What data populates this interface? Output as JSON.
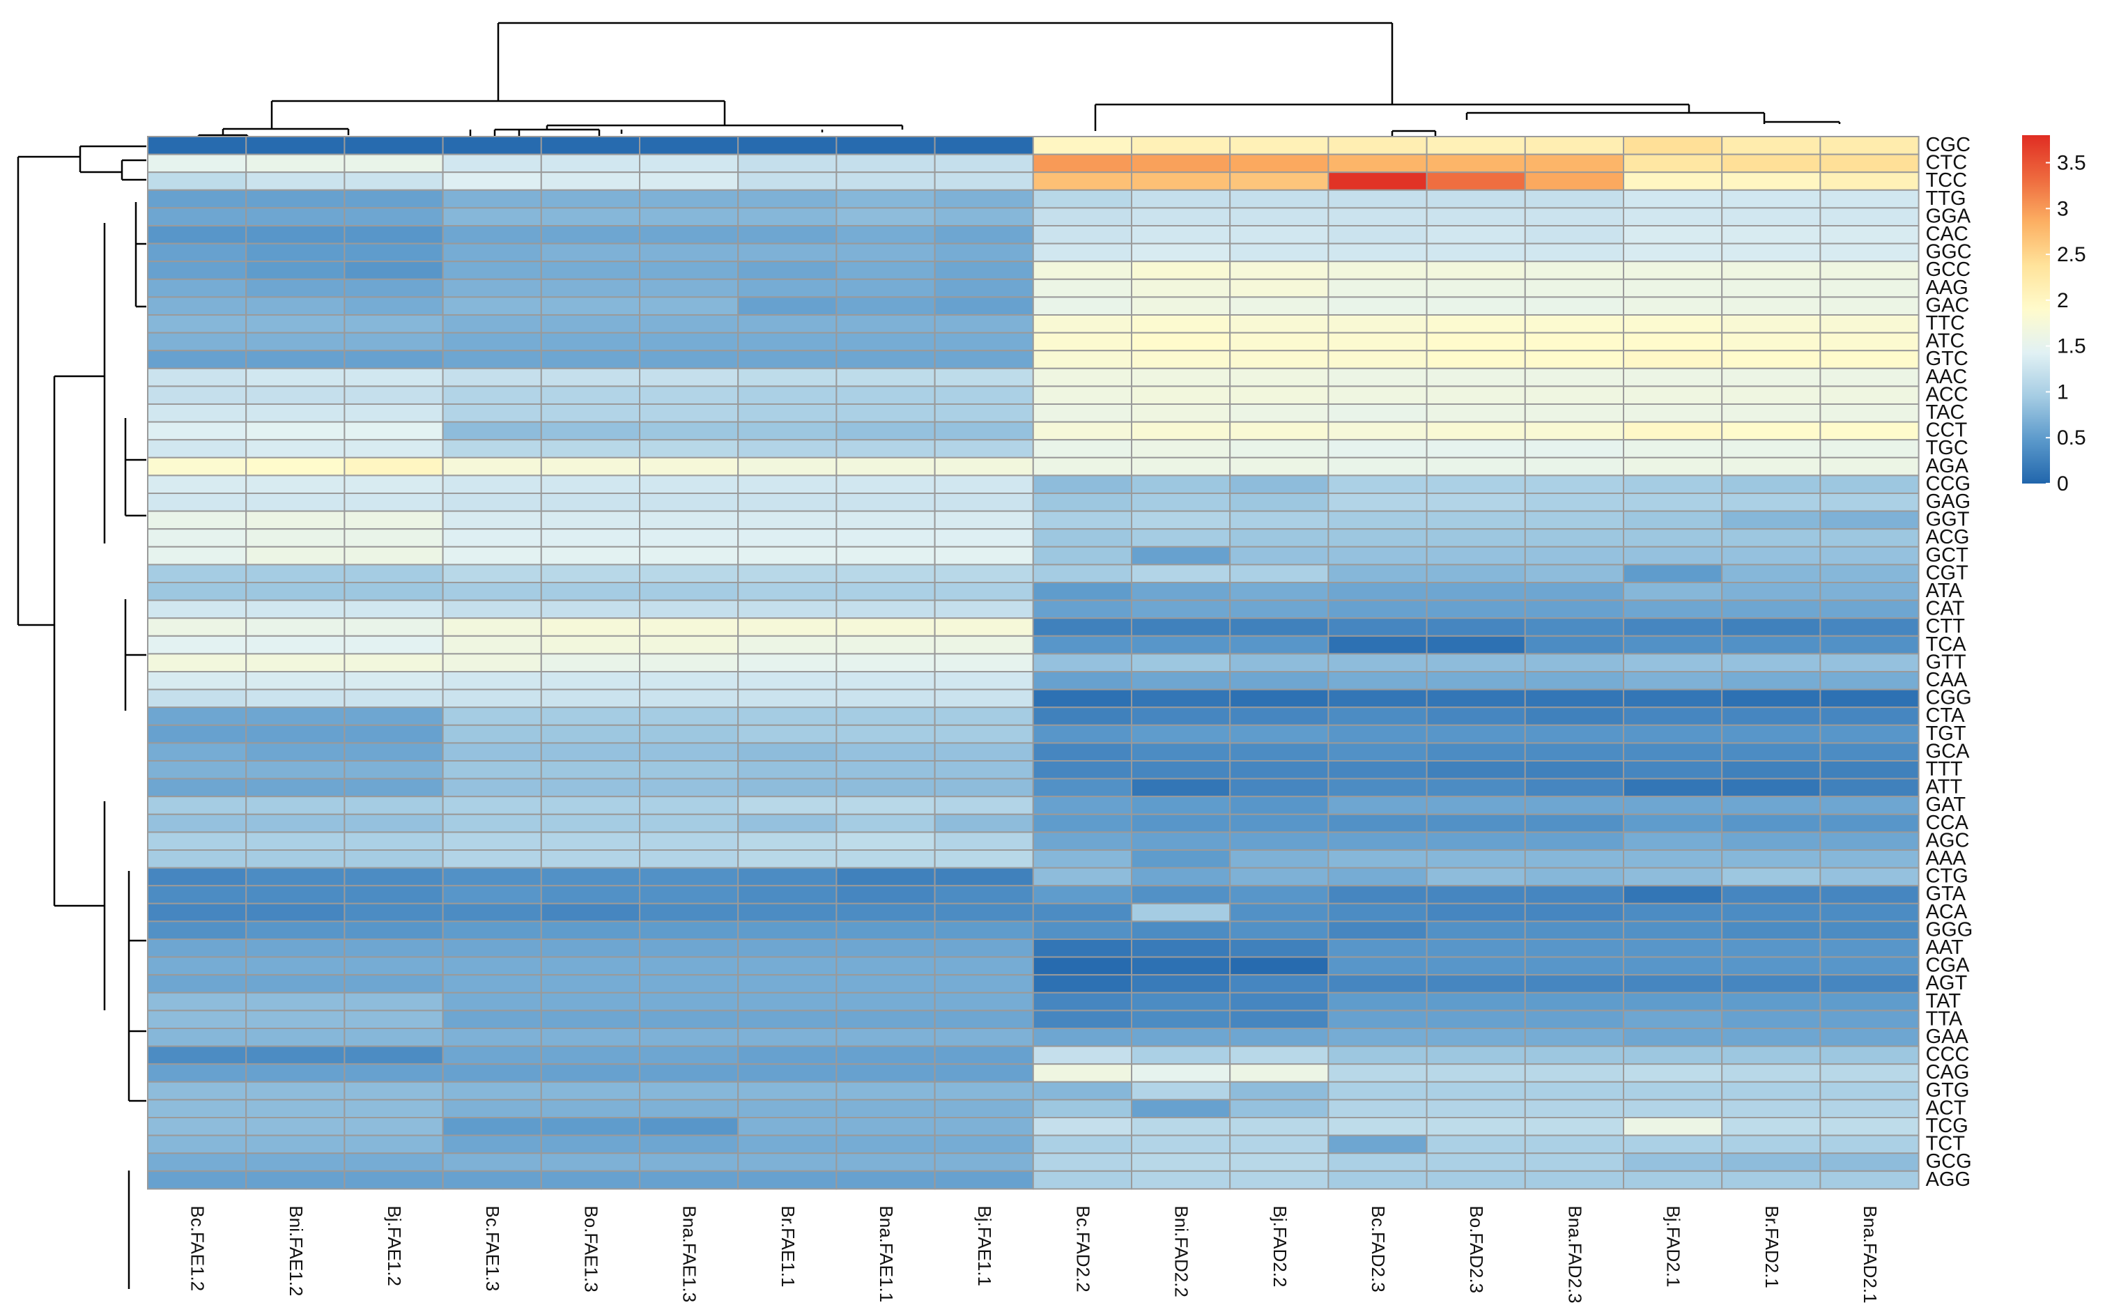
{
  "chart_data": {
    "type": "heatmap",
    "title": "",
    "colorscale": [
      "#2166AC",
      "#5B99CB",
      "#A5CCE3",
      "#E1F1F4",
      "#FFFBCC",
      "#FFE39B",
      "#FCB063",
      "#EE6A3E",
      "#E02D23"
    ],
    "vrange": [
      0,
      3.8
    ],
    "colorbar_ticks": [
      "0",
      "0.5",
      "1",
      "1.5",
      "2",
      "2.5",
      "3",
      "3.5"
    ],
    "columns": [
      "Bc.FAE1.2",
      "Bni.FAE1.2",
      "Bj.FAE1.2",
      "Bc.FAE1.3",
      "Bo.FAE1.3",
      "Bna.FAE1.3",
      "Br.FAE1.1",
      "Bna.FAE1.1",
      "Bj.FAE1.1",
      "Bc.FAD2.2",
      "Bni.FAD2.2",
      "Bj.FAD2.2",
      "Bc.FAD2.3",
      "Bo.FAD2.3",
      "Bna.FAD2.3",
      "Bj.FAD2.1",
      "Br.FAD2.1",
      "Bna.FAD2.1"
    ],
    "rows": [
      "CGC",
      "CTC",
      "TCC",
      "TTG",
      "GGA",
      "CAC",
      "GGC",
      "GCC",
      "AAG",
      "GAC",
      "TTC",
      "ATC",
      "GTC",
      "AAC",
      "ACC",
      "TAC",
      "CCT",
      "TGC",
      "AGA",
      "CCG",
      "GAG",
      "GGT",
      "ACG",
      "GCT",
      "CGT",
      "ATA",
      "CAT",
      "CTT",
      "TCA",
      "GTT",
      "CAA",
      "CGG",
      "CTA",
      "TGT",
      "GCA",
      "TTT",
      "ATT",
      "GAT",
      "CCA",
      "AGC",
      "AAA",
      "CTG",
      "GTA",
      "ACA",
      "GGG",
      "AAT",
      "CGA",
      "AGT",
      "TAT",
      "TTA",
      "GAA",
      "CCC",
      "CAG",
      "GTG",
      "ACT",
      "TCG",
      "TCT",
      "GCG",
      "AGG"
    ],
    "values": [
      [
        0.05,
        0.05,
        0.05,
        0.05,
        0.05,
        0.05,
        0.05,
        0.05,
        0.05,
        2.0,
        2.1,
        2.1,
        2.15,
        2.1,
        2.15,
        2.4,
        2.2,
        2.2
      ],
      [
        1.5,
        1.55,
        1.55,
        1.3,
        1.3,
        1.3,
        1.2,
        1.2,
        1.2,
        3.0,
        2.95,
        2.9,
        2.8,
        2.8,
        2.8,
        2.3,
        2.4,
        2.4
      ],
      [
        1.15,
        1.25,
        1.25,
        1.4,
        1.35,
        1.35,
        1.2,
        1.2,
        1.2,
        2.7,
        2.7,
        2.65,
        3.75,
        3.3,
        2.9,
        2.0,
        2.0,
        2.1
      ],
      [
        0.55,
        0.55,
        0.55,
        0.7,
        0.7,
        0.7,
        0.7,
        0.75,
        0.7,
        1.1,
        1.2,
        1.2,
        1.2,
        1.2,
        1.2,
        1.3,
        1.3,
        1.3
      ],
      [
        0.6,
        0.6,
        0.6,
        0.75,
        0.75,
        0.75,
        0.75,
        0.8,
        0.75,
        1.2,
        1.25,
        1.25,
        1.25,
        1.25,
        1.25,
        1.3,
        1.3,
        1.3
      ],
      [
        0.45,
        0.45,
        0.45,
        0.6,
        0.6,
        0.6,
        0.6,
        0.65,
        0.6,
        1.25,
        1.3,
        1.3,
        1.25,
        1.3,
        1.25,
        1.35,
        1.35,
        1.35
      ],
      [
        0.55,
        0.5,
        0.5,
        0.65,
        0.7,
        0.7,
        0.7,
        0.7,
        0.65,
        1.3,
        1.35,
        1.3,
        1.3,
        1.3,
        1.3,
        1.35,
        1.35,
        1.35
      ],
      [
        0.55,
        0.5,
        0.45,
        0.65,
        0.65,
        0.65,
        0.6,
        0.65,
        0.6,
        1.7,
        1.8,
        1.75,
        1.7,
        1.7,
        1.65,
        1.65,
        1.65,
        1.65
      ],
      [
        0.65,
        0.6,
        0.6,
        0.7,
        0.7,
        0.7,
        0.65,
        0.65,
        0.6,
        1.6,
        1.7,
        1.75,
        1.6,
        1.6,
        1.6,
        1.6,
        1.6,
        1.6
      ],
      [
        0.7,
        0.7,
        0.65,
        0.75,
        0.75,
        0.75,
        0.55,
        0.6,
        0.55,
        1.55,
        1.65,
        1.6,
        1.55,
        1.55,
        1.55,
        1.6,
        1.6,
        1.6
      ],
      [
        0.75,
        0.75,
        0.75,
        0.7,
        0.7,
        0.7,
        0.7,
        0.7,
        0.7,
        1.8,
        1.85,
        1.8,
        1.8,
        1.85,
        1.85,
        1.85,
        1.8,
        1.8
      ],
      [
        0.7,
        0.7,
        0.7,
        0.65,
        0.65,
        0.65,
        0.65,
        0.65,
        0.65,
        1.85,
        1.9,
        1.85,
        1.85,
        1.9,
        1.9,
        1.9,
        1.85,
        1.85
      ],
      [
        0.55,
        0.55,
        0.55,
        0.6,
        0.6,
        0.6,
        0.6,
        0.6,
        0.6,
        1.8,
        1.85,
        1.85,
        1.85,
        1.9,
        1.9,
        1.95,
        1.9,
        1.9
      ],
      [
        1.25,
        1.3,
        1.3,
        1.2,
        1.2,
        1.2,
        1.15,
        1.15,
        1.15,
        1.65,
        1.65,
        1.65,
        1.6,
        1.6,
        1.6,
        1.6,
        1.6,
        1.6
      ],
      [
        1.2,
        1.2,
        1.2,
        1.05,
        1.05,
        1.05,
        1.0,
        1.0,
        1.0,
        1.65,
        1.7,
        1.7,
        1.65,
        1.65,
        1.65,
        1.65,
        1.65,
        1.65
      ],
      [
        1.3,
        1.3,
        1.3,
        1.05,
        1.05,
        1.05,
        1.0,
        1.0,
        1.0,
        1.6,
        1.65,
        1.6,
        1.55,
        1.6,
        1.6,
        1.6,
        1.6,
        1.6
      ],
      [
        1.4,
        1.45,
        1.45,
        0.8,
        0.85,
        0.9,
        0.9,
        0.85,
        0.85,
        1.75,
        1.8,
        1.8,
        1.75,
        1.8,
        1.8,
        1.95,
        1.9,
        1.9
      ],
      [
        1.3,
        1.35,
        1.35,
        1.1,
        1.1,
        1.1,
        1.05,
        1.05,
        1.05,
        1.55,
        1.6,
        1.55,
        1.5,
        1.5,
        1.5,
        1.55,
        1.55,
        1.55
      ],
      [
        1.85,
        1.9,
        2.0,
        1.75,
        1.75,
        1.75,
        1.7,
        1.7,
        1.7,
        1.6,
        1.6,
        1.6,
        1.55,
        1.55,
        1.55,
        1.6,
        1.6,
        1.6
      ],
      [
        1.35,
        1.35,
        1.35,
        1.3,
        1.3,
        1.3,
        1.3,
        1.3,
        1.3,
        0.8,
        0.9,
        0.8,
        1.0,
        1.0,
        1.0,
        0.95,
        0.9,
        0.9
      ],
      [
        1.3,
        1.3,
        1.3,
        1.25,
        1.25,
        1.25,
        1.25,
        1.25,
        1.25,
        0.9,
        0.95,
        0.9,
        1.05,
        1.05,
        1.0,
        1.0,
        1.0,
        1.0
      ],
      [
        1.55,
        1.6,
        1.6,
        1.35,
        1.35,
        1.35,
        1.35,
        1.35,
        1.35,
        1.0,
        1.05,
        1.0,
        0.95,
        0.95,
        0.95,
        0.9,
        0.75,
        0.7
      ],
      [
        1.5,
        1.55,
        1.55,
        1.4,
        1.4,
        1.4,
        1.4,
        1.4,
        1.4,
        0.9,
        0.95,
        0.9,
        0.9,
        0.9,
        0.9,
        0.9,
        0.9,
        0.9
      ],
      [
        1.5,
        1.6,
        1.6,
        1.45,
        1.45,
        1.45,
        1.45,
        1.45,
        1.45,
        0.9,
        0.55,
        0.85,
        0.85,
        0.85,
        0.85,
        0.85,
        0.85,
        0.85
      ],
      [
        0.95,
        0.95,
        0.95,
        1.1,
        1.1,
        1.1,
        1.1,
        1.1,
        1.1,
        0.95,
        1.05,
        1.0,
        0.75,
        0.75,
        0.8,
        0.5,
        0.75,
        0.75
      ],
      [
        0.9,
        0.9,
        0.9,
        0.95,
        0.95,
        0.95,
        1.0,
        1.0,
        1.0,
        0.5,
        0.6,
        0.65,
        0.6,
        0.6,
        0.6,
        0.75,
        0.7,
        0.7
      ],
      [
        1.3,
        1.3,
        1.3,
        1.2,
        1.2,
        1.2,
        1.2,
        1.2,
        1.2,
        0.55,
        0.6,
        0.6,
        0.55,
        0.55,
        0.55,
        0.6,
        0.6,
        0.6
      ],
      [
        1.6,
        1.55,
        1.55,
        1.7,
        1.75,
        1.75,
        1.75,
        1.75,
        1.75,
        0.25,
        0.25,
        0.25,
        0.3,
        0.3,
        0.35,
        0.3,
        0.25,
        0.3
      ],
      [
        1.45,
        1.45,
        1.45,
        1.65,
        1.7,
        1.7,
        1.6,
        1.6,
        1.6,
        0.45,
        0.45,
        0.45,
        0.1,
        0.1,
        0.35,
        0.4,
        0.4,
        0.4
      ],
      [
        1.7,
        1.7,
        1.7,
        1.65,
        1.55,
        1.55,
        1.5,
        1.5,
        1.5,
        0.85,
        0.9,
        0.8,
        0.8,
        0.8,
        0.8,
        0.85,
        0.85,
        0.85
      ],
      [
        1.35,
        1.35,
        1.35,
        1.3,
        1.3,
        1.3,
        1.3,
        1.3,
        1.3,
        0.55,
        0.6,
        0.6,
        0.65,
        0.65,
        0.65,
        0.7,
        0.65,
        0.65
      ],
      [
        1.2,
        1.25,
        1.25,
        1.25,
        1.25,
        1.25,
        1.25,
        1.25,
        1.25,
        0.1,
        0.15,
        0.1,
        0.15,
        0.15,
        0.15,
        0.15,
        0.1,
        0.1
      ],
      [
        0.6,
        0.6,
        0.6,
        0.95,
        0.95,
        0.95,
        0.95,
        0.95,
        0.95,
        0.25,
        0.3,
        0.3,
        0.35,
        0.3,
        0.25,
        0.3,
        0.3,
        0.3
      ],
      [
        0.55,
        0.55,
        0.55,
        0.9,
        0.9,
        0.9,
        0.95,
        0.95,
        0.95,
        0.45,
        0.5,
        0.5,
        0.45,
        0.45,
        0.45,
        0.45,
        0.45,
        0.45
      ],
      [
        0.65,
        0.6,
        0.6,
        0.85,
        0.85,
        0.85,
        0.8,
        0.85,
        0.85,
        0.3,
        0.35,
        0.35,
        0.4,
        0.35,
        0.35,
        0.35,
        0.35,
        0.35
      ],
      [
        0.7,
        0.7,
        0.7,
        0.9,
        0.9,
        0.9,
        0.85,
        0.85,
        0.85,
        0.3,
        0.3,
        0.3,
        0.3,
        0.25,
        0.25,
        0.3,
        0.25,
        0.25
      ],
      [
        0.6,
        0.6,
        0.6,
        0.85,
        0.85,
        0.85,
        0.8,
        0.8,
        0.8,
        0.4,
        0.15,
        0.3,
        0.35,
        0.35,
        0.3,
        0.15,
        0.15,
        0.25
      ],
      [
        0.95,
        0.95,
        0.95,
        1.0,
        1.0,
        1.0,
        1.1,
        1.1,
        1.05,
        0.55,
        0.5,
        0.45,
        0.6,
        0.6,
        0.6,
        0.6,
        0.6,
        0.6
      ],
      [
        0.85,
        0.85,
        0.85,
        0.95,
        0.95,
        0.95,
        0.85,
        0.95,
        0.8,
        0.5,
        0.45,
        0.45,
        0.4,
        0.4,
        0.4,
        0.5,
        0.45,
        0.45
      ],
      [
        1.0,
        1.0,
        1.0,
        1.05,
        1.05,
        1.05,
        1.1,
        1.15,
        1.05,
        0.6,
        0.55,
        0.55,
        0.55,
        0.55,
        0.55,
        0.65,
        0.6,
        0.6
      ],
      [
        0.95,
        0.95,
        0.95,
        1.05,
        1.05,
        1.05,
        1.1,
        1.1,
        1.1,
        0.75,
        0.5,
        0.7,
        0.75,
        0.75,
        0.75,
        0.75,
        0.75,
        0.75
      ],
      [
        0.3,
        0.35,
        0.35,
        0.4,
        0.4,
        0.4,
        0.35,
        0.25,
        0.25,
        0.8,
        0.6,
        0.7,
        0.65,
        0.8,
        0.75,
        0.8,
        0.9,
        0.85
      ],
      [
        0.35,
        0.35,
        0.35,
        0.45,
        0.4,
        0.4,
        0.35,
        0.3,
        0.35,
        0.5,
        0.4,
        0.45,
        0.3,
        0.3,
        0.3,
        0.15,
        0.3,
        0.3
      ],
      [
        0.3,
        0.3,
        0.35,
        0.35,
        0.3,
        0.35,
        0.35,
        0.35,
        0.35,
        0.35,
        0.95,
        0.4,
        0.35,
        0.3,
        0.3,
        0.35,
        0.35,
        0.35
      ],
      [
        0.4,
        0.45,
        0.45,
        0.5,
        0.5,
        0.5,
        0.5,
        0.5,
        0.5,
        0.4,
        0.35,
        0.4,
        0.3,
        0.4,
        0.4,
        0.4,
        0.35,
        0.35
      ],
      [
        0.6,
        0.6,
        0.6,
        0.6,
        0.6,
        0.6,
        0.6,
        0.6,
        0.6,
        0.15,
        0.2,
        0.25,
        0.45,
        0.45,
        0.45,
        0.45,
        0.45,
        0.45
      ],
      [
        0.65,
        0.65,
        0.65,
        0.65,
        0.65,
        0.65,
        0.65,
        0.65,
        0.65,
        0.05,
        0.1,
        0.05,
        0.45,
        0.45,
        0.45,
        0.45,
        0.45,
        0.45
      ],
      [
        0.6,
        0.6,
        0.6,
        0.65,
        0.65,
        0.65,
        0.65,
        0.65,
        0.65,
        0.1,
        0.2,
        0.3,
        0.3,
        0.3,
        0.3,
        0.3,
        0.3,
        0.3
      ],
      [
        0.8,
        0.8,
        0.8,
        0.65,
        0.65,
        0.65,
        0.65,
        0.65,
        0.65,
        0.3,
        0.35,
        0.3,
        0.5,
        0.5,
        0.5,
        0.5,
        0.5,
        0.5
      ],
      [
        0.8,
        0.8,
        0.8,
        0.6,
        0.6,
        0.6,
        0.6,
        0.6,
        0.6,
        0.3,
        0.35,
        0.3,
        0.55,
        0.55,
        0.55,
        0.6,
        0.55,
        0.55
      ],
      [
        0.75,
        0.75,
        0.75,
        0.7,
        0.7,
        0.7,
        0.7,
        0.7,
        0.7,
        0.6,
        0.6,
        0.6,
        0.65,
        0.65,
        0.65,
        0.6,
        0.6,
        0.6
      ],
      [
        0.35,
        0.35,
        0.35,
        0.6,
        0.6,
        0.6,
        0.55,
        0.55,
        0.55,
        1.2,
        1.0,
        1.1,
        0.9,
        0.9,
        0.9,
        0.9,
        0.9,
        0.9
      ],
      [
        0.55,
        0.55,
        0.55,
        0.55,
        0.55,
        0.55,
        0.55,
        0.55,
        0.55,
        1.65,
        1.5,
        1.6,
        1.1,
        1.1,
        1.1,
        1.15,
        1.1,
        1.1
      ],
      [
        0.8,
        0.8,
        0.8,
        0.75,
        0.75,
        0.75,
        0.75,
        0.75,
        0.75,
        0.75,
        1.05,
        0.8,
        1.0,
        1.0,
        1.0,
        1.0,
        1.0,
        1.0
      ],
      [
        0.8,
        0.8,
        0.8,
        0.7,
        0.7,
        0.7,
        0.7,
        0.7,
        0.7,
        0.9,
        0.55,
        0.85,
        1.05,
        1.05,
        1.05,
        1.05,
        1.05,
        1.05
      ],
      [
        0.8,
        0.8,
        0.8,
        0.5,
        0.5,
        0.45,
        0.7,
        0.7,
        0.7,
        1.2,
        1.1,
        1.1,
        1.15,
        1.15,
        1.15,
        1.6,
        1.15,
        1.15
      ],
      [
        0.75,
        0.75,
        0.75,
        0.6,
        0.6,
        0.6,
        0.65,
        0.65,
        0.65,
        1.0,
        1.05,
        1.05,
        0.6,
        1.0,
        1.0,
        1.0,
        1.0,
        1.0
      ],
      [
        0.65,
        0.65,
        0.65,
        0.7,
        0.7,
        0.7,
        0.7,
        0.7,
        0.7,
        1.05,
        1.1,
        1.1,
        1.0,
        1.0,
        1.0,
        0.85,
        0.8,
        0.8
      ],
      [
        0.55,
        0.55,
        0.55,
        0.55,
        0.55,
        0.55,
        0.55,
        0.55,
        0.55,
        1.0,
        1.05,
        1.05,
        0.95,
        0.95,
        0.95,
        0.95,
        0.95,
        0.95
      ]
    ]
  }
}
